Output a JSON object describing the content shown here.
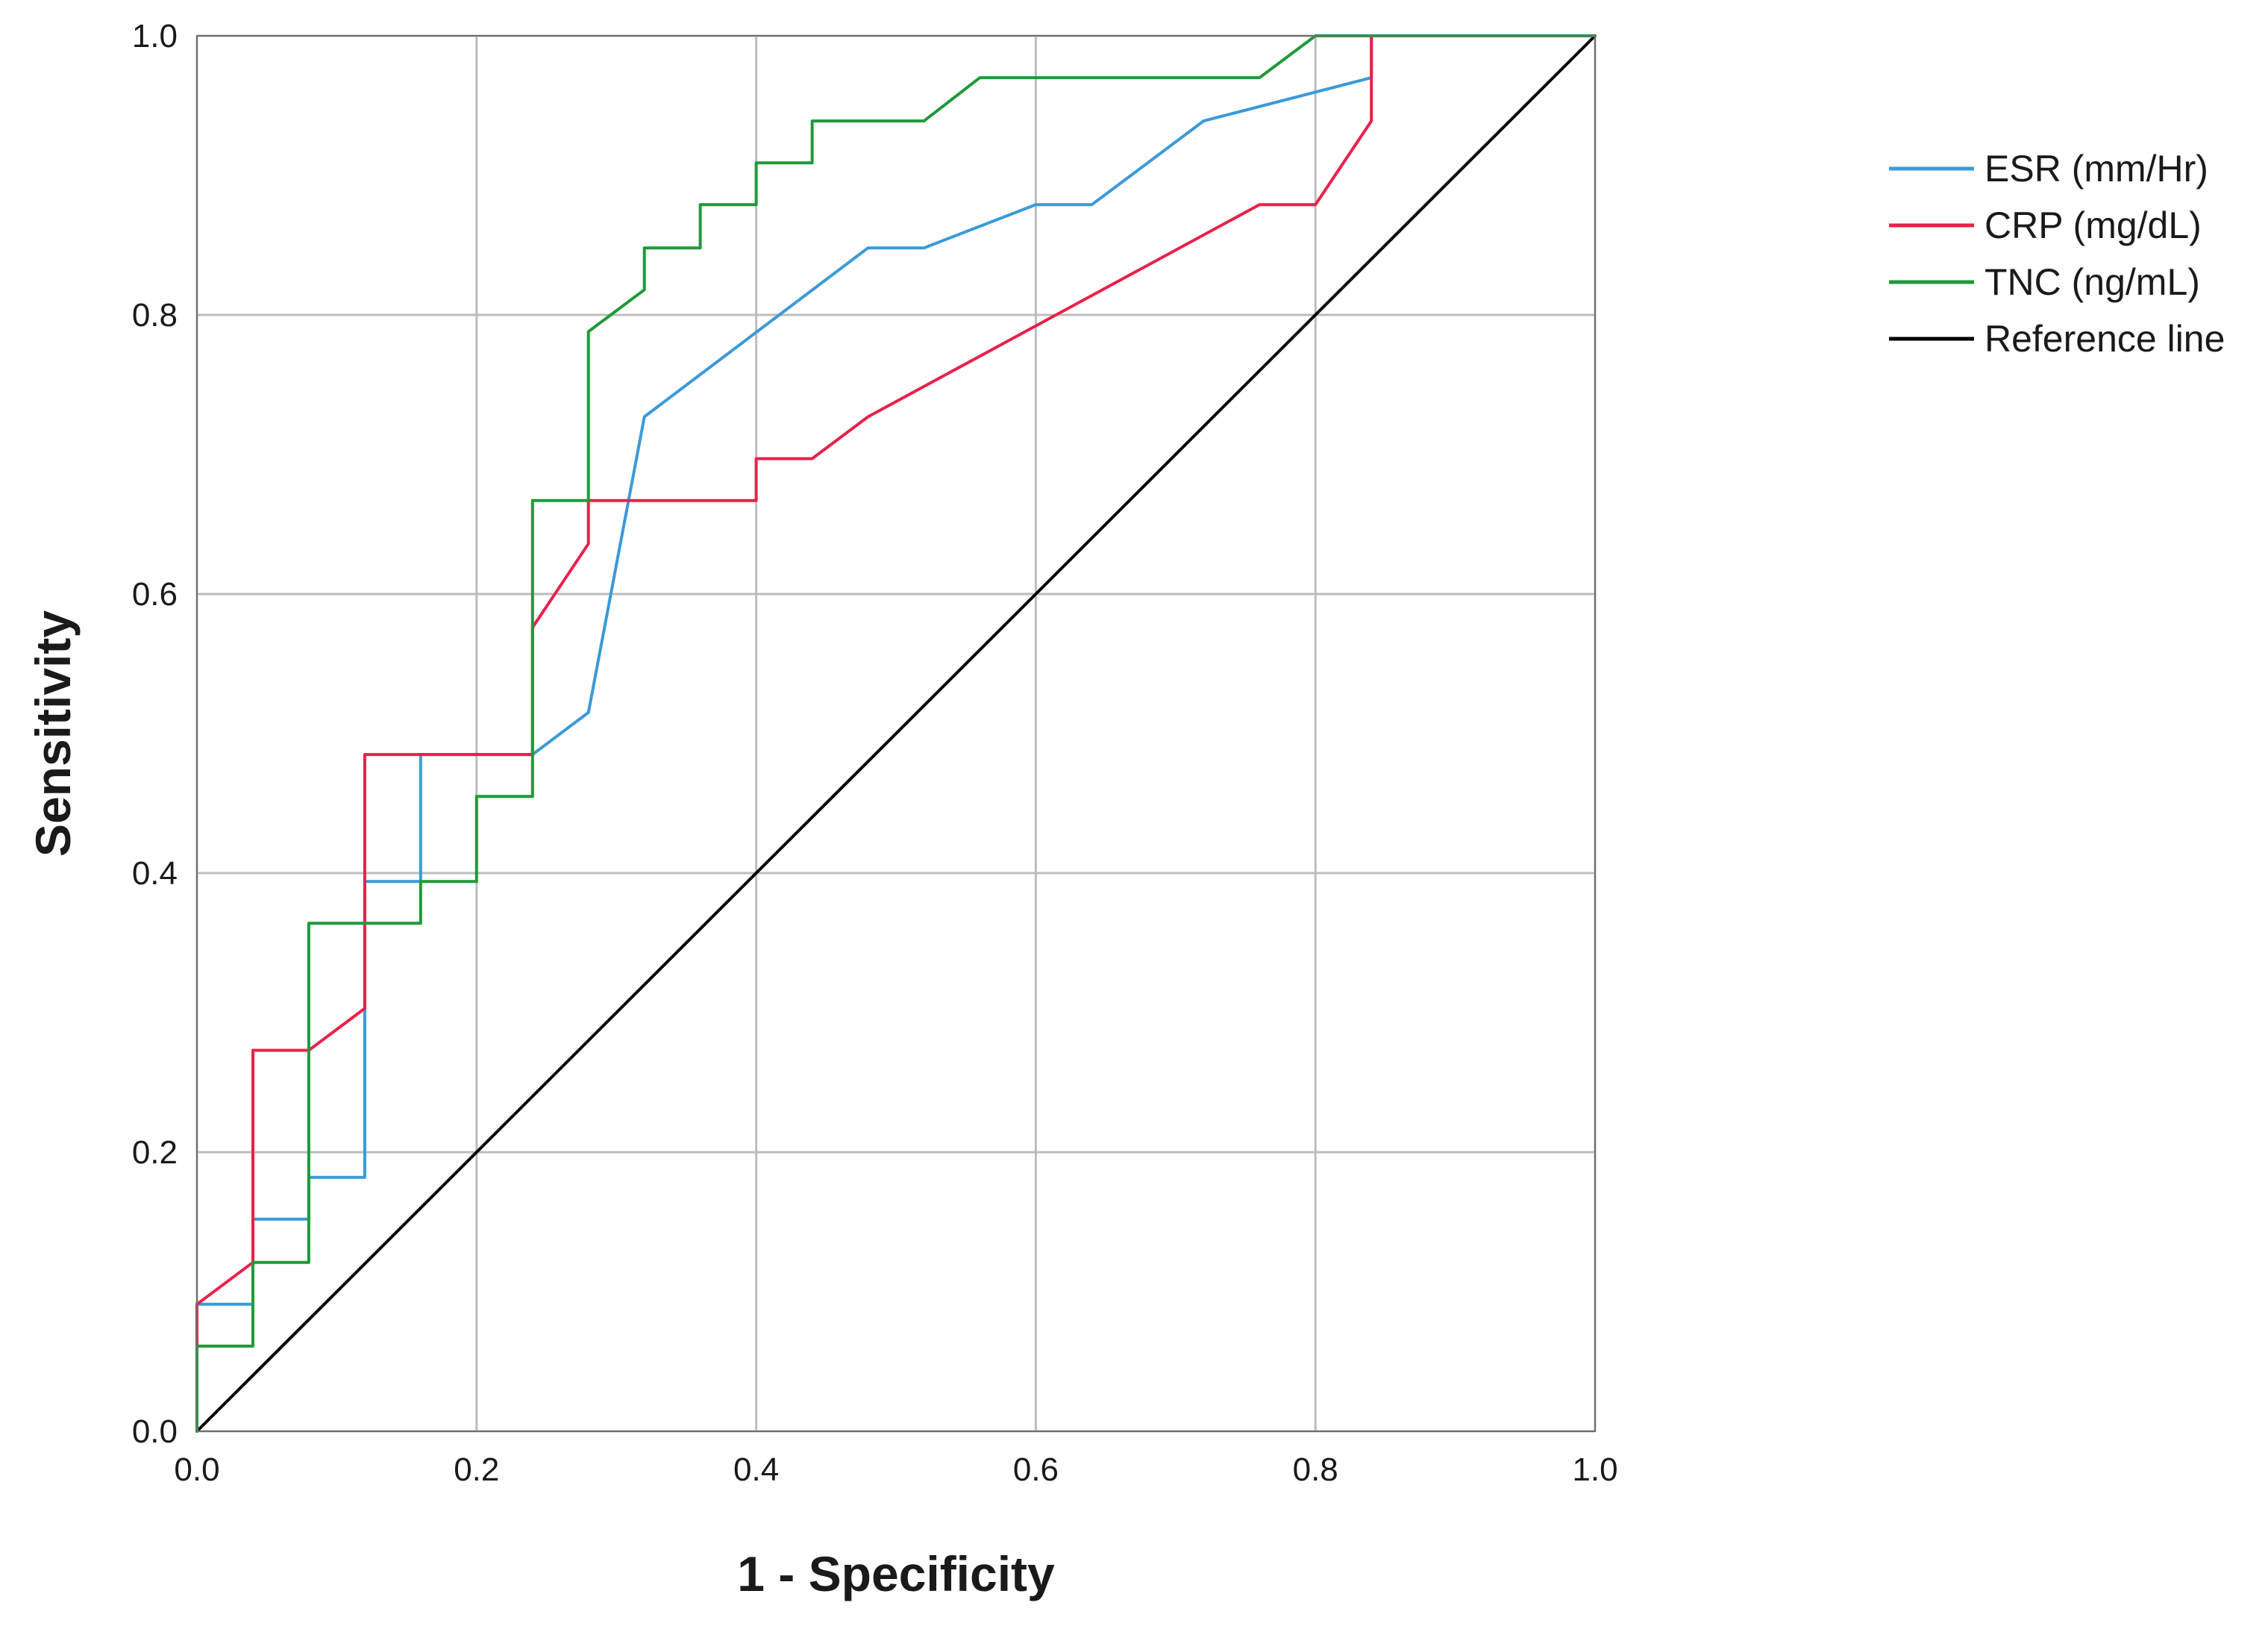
{
  "chart_data": {
    "type": "line",
    "title": "",
    "xlabel": "1 - Specificity",
    "ylabel": "Sensitivity",
    "xlim": [
      0.0,
      1.0
    ],
    "ylim": [
      0.0,
      1.0
    ],
    "xticks": [
      "0.0",
      "0.2",
      "0.4",
      "0.6",
      "0.8",
      "1.0"
    ],
    "yticks": [
      "0.0",
      "0.2",
      "0.4",
      "0.6",
      "0.8",
      "1.0"
    ],
    "grid": true,
    "legend_position": "right",
    "series": [
      {
        "name": "ESR (mm/Hr)",
        "color": "#3a9ad9",
        "points": [
          [
            0,
            0
          ],
          [
            0,
            0.091
          ],
          [
            0.04,
            0.091
          ],
          [
            0.04,
            0.152
          ],
          [
            0.08,
            0.152
          ],
          [
            0.08,
            0.182
          ],
          [
            0.12,
            0.182
          ],
          [
            0.12,
            0.394
          ],
          [
            0.16,
            0.394
          ],
          [
            0.16,
            0.485
          ],
          [
            0.24,
            0.485
          ],
          [
            0.28,
            0.515
          ],
          [
            0.32,
            0.727
          ],
          [
            0.48,
            0.848
          ],
          [
            0.52,
            0.848
          ],
          [
            0.6,
            0.879
          ],
          [
            0.64,
            0.879
          ],
          [
            0.72,
            0.939
          ],
          [
            0.84,
            0.97
          ],
          [
            0.84,
            1.0
          ],
          [
            1.0,
            1.0
          ]
        ]
      },
      {
        "name": "CRP (mg/dL)",
        "color": "#e8214a",
        "points": [
          [
            0,
            0
          ],
          [
            0,
            0.061
          ],
          [
            0,
            0.091
          ],
          [
            0.04,
            0.121
          ],
          [
            0.04,
            0.273
          ],
          [
            0.08,
            0.273
          ],
          [
            0.12,
            0.303
          ],
          [
            0.12,
            0.485
          ],
          [
            0.24,
            0.485
          ],
          [
            0.24,
            0.576
          ],
          [
            0.28,
            0.636
          ],
          [
            0.28,
            0.667
          ],
          [
            0.4,
            0.667
          ],
          [
            0.4,
            0.697
          ],
          [
            0.44,
            0.697
          ],
          [
            0.48,
            0.727
          ],
          [
            0.76,
            0.879
          ],
          [
            0.8,
            0.879
          ],
          [
            0.84,
            0.939
          ],
          [
            0.84,
            1.0
          ],
          [
            1.0,
            1.0
          ]
        ]
      },
      {
        "name": "TNC (ng/mL)",
        "color": "#1f9a3a",
        "points": [
          [
            0,
            0
          ],
          [
            0,
            0.061
          ],
          [
            0.04,
            0.061
          ],
          [
            0.04,
            0.121
          ],
          [
            0.08,
            0.121
          ],
          [
            0.08,
            0.364
          ],
          [
            0.16,
            0.364
          ],
          [
            0.16,
            0.394
          ],
          [
            0.2,
            0.394
          ],
          [
            0.2,
            0.455
          ],
          [
            0.24,
            0.455
          ],
          [
            0.24,
            0.667
          ],
          [
            0.28,
            0.667
          ],
          [
            0.28,
            0.788
          ],
          [
            0.32,
            0.818
          ],
          [
            0.32,
            0.848
          ],
          [
            0.36,
            0.848
          ],
          [
            0.36,
            0.879
          ],
          [
            0.4,
            0.879
          ],
          [
            0.4,
            0.909
          ],
          [
            0.44,
            0.909
          ],
          [
            0.44,
            0.939
          ],
          [
            0.52,
            0.939
          ],
          [
            0.56,
            0.97
          ],
          [
            0.76,
            0.97
          ],
          [
            0.8,
            1.0
          ],
          [
            1.0,
            1.0
          ]
        ]
      },
      {
        "name": "Reference line",
        "color": "#000000",
        "points": [
          [
            0,
            0
          ],
          [
            1,
            1
          ]
        ]
      }
    ]
  }
}
